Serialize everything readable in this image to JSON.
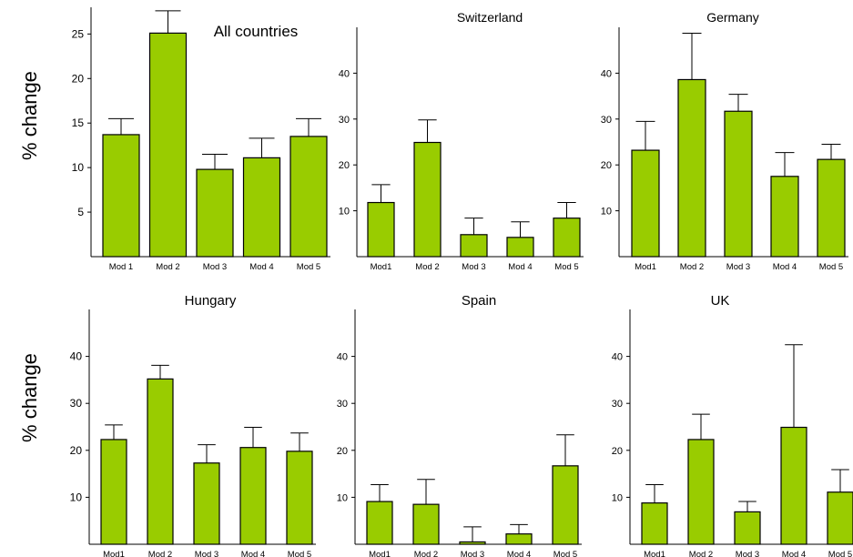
{
  "shared": {
    "ylabel": "% change",
    "bar_color": "#99cc00"
  },
  "chart_data": [
    {
      "type": "bar",
      "title": "All countries",
      "categories": [
        "Mod 1",
        "Mod 2",
        "Mod 3",
        "Mod 4",
        "Mod 5"
      ],
      "values": [
        13.7,
        25.1,
        9.8,
        11.1,
        13.5
      ],
      "error_upper": [
        15.5,
        27.6,
        11.5,
        13.3,
        15.5
      ],
      "yticks": [
        5,
        10,
        15,
        20,
        25
      ],
      "ylim": [
        0,
        28
      ]
    },
    {
      "type": "bar",
      "title": "Switzerland",
      "categories": [
        "Mod1",
        "Mod 2",
        "Mod 3",
        "Mod 4",
        "Mod 5"
      ],
      "values": [
        11.8,
        24.9,
        4.8,
        4.2,
        8.4
      ],
      "error_upper": [
        15.7,
        29.8,
        8.4,
        7.6,
        11.8
      ],
      "yticks": [
        10,
        20,
        30,
        40
      ],
      "ylim": [
        0,
        50
      ]
    },
    {
      "type": "bar",
      "title": "Germany",
      "categories": [
        "Mod1",
        "Mod 2",
        "Mod 3",
        "Mod 4",
        "Mod 5"
      ],
      "values": [
        23.2,
        38.6,
        31.7,
        17.5,
        21.2
      ],
      "error_upper": [
        29.5,
        48.7,
        35.4,
        22.7,
        24.5
      ],
      "yticks": [
        10,
        20,
        30,
        40
      ],
      "ylim": [
        0,
        50
      ]
    },
    {
      "type": "bar",
      "title": "Hungary",
      "categories": [
        "Mod1",
        "Mod 2",
        "Mod 3",
        "Mod 4",
        "Mod 5"
      ],
      "values": [
        22.3,
        35.2,
        17.3,
        20.6,
        19.8
      ],
      "error_upper": [
        25.4,
        38.1,
        21.2,
        24.9,
        23.7
      ],
      "yticks": [
        10,
        20,
        30,
        40
      ],
      "ylim": [
        0,
        50
      ]
    },
    {
      "type": "bar",
      "title": "Spain",
      "categories": [
        "Mod1",
        "Mod 2",
        "Mod 3",
        "Mod 4",
        "Mod 5"
      ],
      "values": [
        9.1,
        8.5,
        0.5,
        2.2,
        16.7
      ],
      "error_upper": [
        12.7,
        13.8,
        3.7,
        4.2,
        23.3
      ],
      "yticks": [
        10,
        20,
        30,
        40
      ],
      "ylim": [
        0,
        50
      ]
    },
    {
      "type": "bar",
      "title": "UK",
      "categories": [
        "Mod1",
        "Mod 2",
        "Mod 3",
        "Mod 4",
        "Mod 5"
      ],
      "values": [
        8.8,
        22.3,
        6.9,
        24.9,
        11.1
      ],
      "error_upper": [
        12.7,
        27.7,
        9.1,
        42.5,
        15.9
      ],
      "yticks": [
        10,
        20,
        30,
        40
      ],
      "ylim": [
        0,
        50
      ]
    }
  ]
}
